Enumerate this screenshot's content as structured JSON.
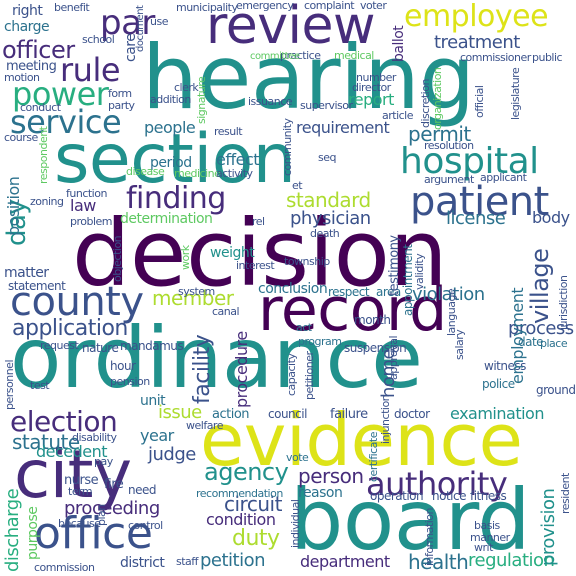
{
  "title": "",
  "palette": {
    "c1": "#440154",
    "c2": "#472d7b",
    "c3": "#3b528b",
    "c4": "#2c728e",
    "c5": "#21918c",
    "c6": "#28ae80",
    "c7": "#5ec962",
    "c8": "#addc30",
    "c9": "#dde318"
  },
  "words": {
    "decision": "decision",
    "ordinance": "ordinance",
    "hearing": "hearing",
    "section": "section",
    "board": "board",
    "evidence": "evidence",
    "city": "city",
    "record": "record",
    "review": "review",
    "county": "county",
    "office": "office",
    "patient": "patient",
    "hospital": "hospital",
    "employee": "employee",
    "finding": "finding",
    "service": "service",
    "authority": "authority",
    "power": "power",
    "rule": "rule",
    "par": "par",
    "officer": "officer",
    "election": "election",
    "agency": "agency",
    "application": "application",
    "day": "day",
    "treatment": "treatment",
    "statute": "statute",
    "village": "village",
    "circuit": "circuit",
    "process": "process",
    "duty": "duty",
    "petition": "petition",
    "health": "health",
    "regulation": "regulation",
    "department": "department",
    "person": "person",
    "member": "member",
    "facility": "facility",
    "standard": "standard",
    "physician": "physician",
    "license": "license",
    "permit": "permit",
    "report": "report",
    "requirement": "requirement",
    "people": "people",
    "law": "law",
    "judge": "judge",
    "year": "year",
    "issue": "issue",
    "examination": "examination",
    "proceeding": "proceeding",
    "discharge": "discharge",
    "employment": "employment",
    "violation": "violation",
    "procedure": "procedure",
    "conclusion": "conclusion",
    "home": "home",
    "position": "position",
    "matter": "matter",
    "effect": "effect",
    "period": "period",
    "weight": "weight",
    "body": "body",
    "determination": "determination",
    "condition": "condition",
    "decedent": "decedent",
    "district": "district",
    "unit": "unit",
    "provision": "provision",
    "charge": "charge",
    "right": "right",
    "care": "care",
    "meeting": "meeting",
    "ballot": "ballot",
    "statement": "statement",
    "purpose": "purpose",
    "nurse": "nurse",
    "fire": "fire",
    "need": "need",
    "action": "action",
    "failure": "failure",
    "doctor": "doctor",
    "council": "council",
    "testimony": "testimony",
    "appointment": "appointment",
    "validity": "validity",
    "recommendation": "recommendation",
    "reason": "reason",
    "operation": "operation",
    "notice": "notice",
    "fitness": "fitness",
    "ground": "ground",
    "police": "police",
    "witness": "witness",
    "capacity": "capacity",
    "petitioner": "petitioner",
    "suspension": "suspension",
    "approval": "approval",
    "month": "month",
    "program": "program",
    "date": "date",
    "place": "place",
    "salary": "salary",
    "language": "language",
    "jurisdiction": "jurisdiction",
    "area": "area",
    "respect": "respect",
    "act": "act",
    "system": "system",
    "canal": "canal",
    "mandamus": "mandamus",
    "request": "request",
    "nature": "nature",
    "pension": "pension",
    "hour": "hour",
    "test": "test",
    "personnel": "personnel",
    "welfare": "welfare",
    "disability": "disability",
    "pay": "pay",
    "form": "form",
    "term": "term",
    "plan": "plan",
    "because": "because",
    "commission": "commission",
    "control": "control",
    "staff": "staff",
    "basis": "basis",
    "manner": "manner",
    "writ": "writ",
    "information": "information",
    "resident": "resident",
    "individual": "individual",
    "vote": "vote",
    "certificate": "certificate",
    "injunction": "injunction",
    "death": "death",
    "work": "work",
    "objection": "objection",
    "interest": "interest",
    "township": "township",
    "rel": "rel",
    "problem": "problem",
    "zoning": "zoning",
    "function": "function",
    "disease": "disease",
    "medicine": "medicine",
    "activity": "activity",
    "applicant": "applicant",
    "argument": "argument",
    "resolution": "resolution",
    "seq": "seq",
    "et": "et",
    "community": "community",
    "result": "result",
    "course": "course",
    "respondent": "respondent",
    "article": "article",
    "supervisor": "supervisor",
    "number": "number",
    "director": "director",
    "discretion": "discretion",
    "organization": "organization",
    "legislature": "legislature",
    "official": "official",
    "commissioner": "commissioner",
    "public": "public",
    "issuance": "issuance",
    "signature": "signature",
    "addition": "addition",
    "clerk": "clerk",
    "practice": "practice",
    "committee": "committee",
    "municipality": "municipality",
    "emergency": "emergency",
    "complaint": "complaint",
    "voter": "voter",
    "use": "use",
    "document": "document",
    "school": "school",
    "benefit": "benefit",
    "motion": "motion",
    "conduct": "conduct",
    "party": "party",
    "medical": "medical"
  }
}
